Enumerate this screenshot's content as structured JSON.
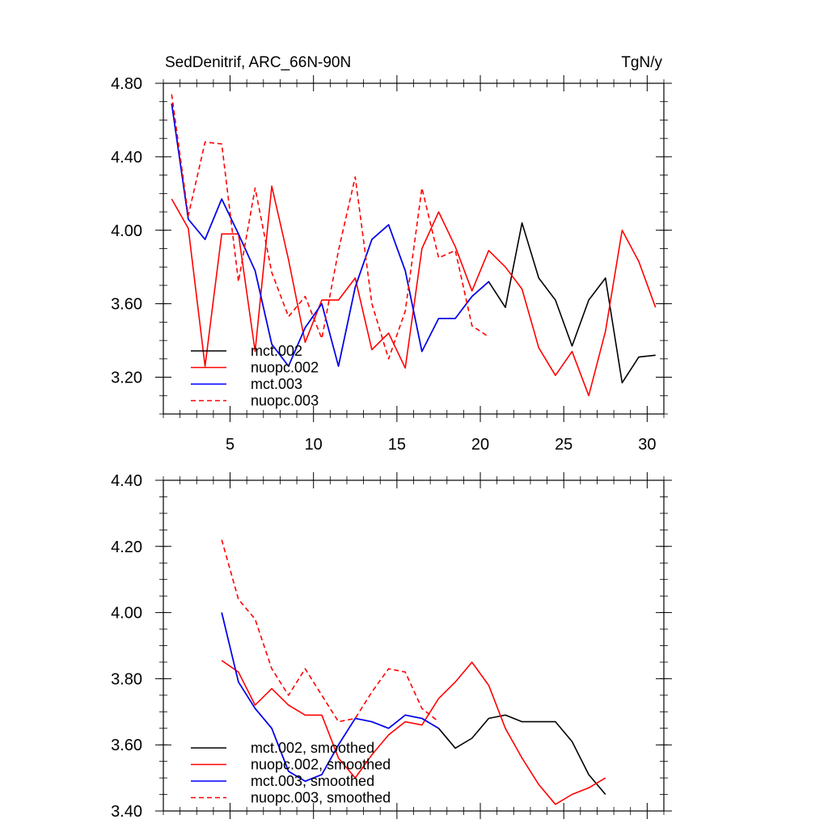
{
  "colors": {
    "black": "#000000",
    "red": "#ff0000",
    "blue": "#0000ff"
  },
  "chart_data": [
    {
      "type": "line",
      "title": "SedDenitrif, ARC_66N-90N",
      "units": "TgN/y",
      "xlim": [
        1,
        31
      ],
      "ylim": [
        3.0,
        4.8
      ],
      "xticks": [
        5,
        10,
        15,
        20,
        25,
        30
      ],
      "xtick_labels": [
        "5",
        "10",
        "15",
        "20",
        "25",
        "30"
      ],
      "yticks": [
        3.2,
        3.6,
        4.0,
        4.4,
        4.8
      ],
      "ytick_labels": [
        "3.20",
        "3.60",
        "4.00",
        "4.40",
        "4.80"
      ],
      "legend_position": "bottom-left",
      "series": [
        {
          "name": "mct.002",
          "color": "#000000",
          "dash": false,
          "x": [
            1.5,
            2.5,
            3.5,
            4.5,
            5.5,
            6.5,
            7.5,
            8.5,
            9.5,
            10.5,
            11.5,
            12.5,
            13.5,
            14.5,
            15.5,
            16.5,
            17.5,
            18.5,
            19.5,
            20.5,
            21.5,
            22.5,
            23.5,
            24.5,
            25.5,
            26.5,
            27.5,
            28.5,
            29.5,
            30.5
          ],
          "values": [
            4.69,
            4.06,
            3.95,
            4.17,
            3.98,
            3.78,
            3.38,
            3.26,
            3.47,
            3.6,
            3.26,
            3.69,
            3.95,
            4.03,
            3.78,
            3.34,
            3.52,
            3.52,
            3.64,
            3.72,
            3.58,
            4.04,
            3.74,
            3.62,
            3.37,
            3.62,
            3.74,
            3.17,
            3.31,
            3.32
          ]
        },
        {
          "name": "nuopc.002",
          "color": "#ff0000",
          "dash": false,
          "x": [
            1.5,
            2.5,
            3.5,
            4.5,
            5.5,
            6.5,
            7.5,
            8.5,
            9.5,
            10.5,
            11.5,
            12.5,
            13.5,
            14.5,
            15.5,
            16.5,
            17.5,
            18.5,
            19.5,
            20.5,
            21.5,
            22.5,
            23.5,
            24.5,
            25.5,
            26.5,
            27.5,
            28.5,
            29.5,
            30.5
          ],
          "values": [
            4.17,
            4.01,
            3.26,
            3.98,
            3.98,
            3.34,
            4.24,
            3.84,
            3.39,
            3.62,
            3.62,
            3.74,
            3.35,
            3.44,
            3.25,
            3.9,
            4.1,
            3.91,
            3.67,
            3.89,
            3.8,
            3.68,
            3.36,
            3.21,
            3.34,
            3.1,
            3.45,
            4.0,
            3.83,
            3.58
          ]
        },
        {
          "name": "mct.003",
          "color": "#0000ff",
          "dash": false,
          "x": [
            1.5,
            2.5,
            3.5,
            4.5,
            5.5,
            6.5,
            7.5,
            8.5,
            9.5,
            10.5,
            11.5,
            12.5,
            13.5,
            14.5,
            15.5,
            16.5,
            17.5,
            18.5,
            19.5,
            20.5
          ],
          "values": [
            4.69,
            4.06,
            3.95,
            4.17,
            3.98,
            3.78,
            3.38,
            3.26,
            3.47,
            3.6,
            3.26,
            3.69,
            3.95,
            4.03,
            3.78,
            3.34,
            3.52,
            3.52,
            3.64,
            3.72
          ]
        },
        {
          "name": "nuopc.003",
          "color": "#ff0000",
          "dash": true,
          "x": [
            1.5,
            2.5,
            3.5,
            4.5,
            5.5,
            6.5,
            7.5,
            8.5,
            9.5,
            10.5,
            11.5,
            12.5,
            13.5,
            14.5,
            15.5,
            16.5,
            17.5,
            18.5,
            19.5,
            20.5
          ],
          "values": [
            4.74,
            4.08,
            4.48,
            4.47,
            3.72,
            4.23,
            3.77,
            3.53,
            3.64,
            3.41,
            3.89,
            4.29,
            3.6,
            3.3,
            3.56,
            4.23,
            3.85,
            3.89,
            3.48,
            3.42
          ]
        }
      ]
    },
    {
      "type": "line",
      "xlim": [
        1,
        31
      ],
      "ylim": [
        3.4,
        4.4
      ],
      "xticks": [
        5,
        10,
        15,
        20,
        25,
        30
      ],
      "yticks": [
        3.4,
        3.6,
        3.8,
        4.0,
        4.2,
        4.4
      ],
      "ytick_labels": [
        "3.40",
        "3.60",
        "3.80",
        "4.00",
        "4.20",
        "4.40"
      ],
      "legend_position": "bottom-left",
      "series": [
        {
          "name": "mct.002, smoothed",
          "color": "#000000",
          "dash": false,
          "x": [
            4.5,
            5.5,
            6.5,
            7.5,
            8.5,
            9.5,
            10.5,
            11.5,
            12.5,
            13.5,
            14.5,
            15.5,
            16.5,
            17.5,
            18.5,
            19.5,
            20.5,
            21.5,
            22.5,
            23.5,
            24.5,
            25.5,
            26.5,
            27.5
          ],
          "values": [
            4.0,
            3.79,
            3.71,
            3.65,
            3.52,
            3.49,
            3.51,
            3.6,
            3.68,
            3.67,
            3.65,
            3.69,
            3.68,
            3.65,
            3.59,
            3.62,
            3.68,
            3.69,
            3.67,
            3.67,
            3.67,
            3.61,
            3.51,
            3.45
          ]
        },
        {
          "name": "nuopc.002, smoothed",
          "color": "#ff0000",
          "dash": false,
          "x": [
            4.5,
            5.5,
            6.5,
            7.5,
            8.5,
            9.5,
            10.5,
            11.5,
            12.5,
            13.5,
            14.5,
            15.5,
            16.5,
            17.5,
            18.5,
            19.5,
            20.5,
            21.5,
            22.5,
            23.5,
            24.5,
            25.5,
            26.5,
            27.5
          ],
          "values": [
            3.855,
            3.82,
            3.72,
            3.77,
            3.72,
            3.69,
            3.69,
            3.56,
            3.5,
            3.57,
            3.63,
            3.67,
            3.66,
            3.74,
            3.79,
            3.85,
            3.78,
            3.65,
            3.56,
            3.48,
            3.42,
            3.45,
            3.47,
            3.5
          ]
        },
        {
          "name": "mct.003, smoothed",
          "color": "#0000ff",
          "dash": false,
          "x": [
            4.5,
            5.5,
            6.5,
            7.5,
            8.5,
            9.5,
            10.5,
            11.5,
            12.5,
            13.5,
            14.5,
            15.5,
            16.5,
            17.5
          ],
          "values": [
            4.0,
            3.79,
            3.71,
            3.65,
            3.52,
            3.49,
            3.51,
            3.6,
            3.68,
            3.67,
            3.65,
            3.69,
            3.68,
            3.65
          ]
        },
        {
          "name": "nuopc.003, smoothed",
          "color": "#ff0000",
          "dash": true,
          "x": [
            4.5,
            5.5,
            6.5,
            7.5,
            8.5,
            9.5,
            10.5,
            11.5,
            12.5,
            13.5,
            14.5,
            15.5,
            16.5,
            17.5
          ],
          "values": [
            4.22,
            4.04,
            3.98,
            3.83,
            3.75,
            3.83,
            3.75,
            3.67,
            3.68,
            3.76,
            3.83,
            3.82,
            3.71,
            3.67
          ]
        }
      ]
    }
  ]
}
